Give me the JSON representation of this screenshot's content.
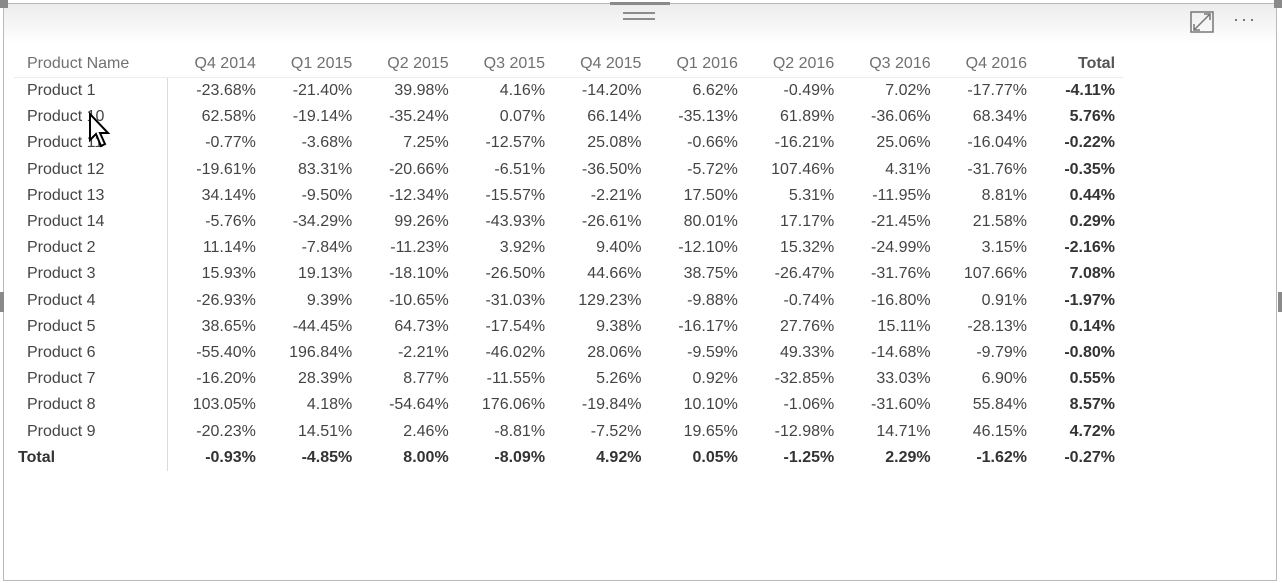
{
  "header": {
    "focus_mode_icon": "focus-mode-icon",
    "more_options_icon": "more-options-icon",
    "more_text": "···"
  },
  "matrix": {
    "columns": [
      "Product Name",
      "Q4 2014",
      "Q1 2015",
      "Q2 2015",
      "Q3 2015",
      "Q4 2015",
      "Q1 2016",
      "Q2 2016",
      "Q3 2016",
      "Q4 2016",
      "Total"
    ],
    "rows": [
      [
        "Product 1",
        "-23.68%",
        "-21.40%",
        "39.98%",
        "4.16%",
        "-14.20%",
        "6.62%",
        "-0.49%",
        "7.02%",
        "-17.77%",
        "-4.11%"
      ],
      [
        "Product 10",
        "62.58%",
        "-19.14%",
        "-35.24%",
        "0.07%",
        "66.14%",
        "-35.13%",
        "61.89%",
        "-36.06%",
        "68.34%",
        "5.76%"
      ],
      [
        "Product 11",
        "-0.77%",
        "-3.68%",
        "7.25%",
        "-12.57%",
        "25.08%",
        "-0.66%",
        "-16.21%",
        "25.06%",
        "-16.04%",
        "-0.22%"
      ],
      [
        "Product 12",
        "-19.61%",
        "83.31%",
        "-20.66%",
        "-6.51%",
        "-36.50%",
        "-5.72%",
        "107.46%",
        "4.31%",
        "-31.76%",
        "-0.35%"
      ],
      [
        "Product 13",
        "34.14%",
        "-9.50%",
        "-12.34%",
        "-15.57%",
        "-2.21%",
        "17.50%",
        "5.31%",
        "-11.95%",
        "8.81%",
        "0.44%"
      ],
      [
        "Product 14",
        "-5.76%",
        "-34.29%",
        "99.26%",
        "-43.93%",
        "-26.61%",
        "80.01%",
        "17.17%",
        "-21.45%",
        "21.58%",
        "0.29%"
      ],
      [
        "Product 2",
        "11.14%",
        "-7.84%",
        "-11.23%",
        "3.92%",
        "9.40%",
        "-12.10%",
        "15.32%",
        "-24.99%",
        "3.15%",
        "-2.16%"
      ],
      [
        "Product 3",
        "15.93%",
        "19.13%",
        "-18.10%",
        "-26.50%",
        "44.66%",
        "38.75%",
        "-26.47%",
        "-31.76%",
        "107.66%",
        "7.08%"
      ],
      [
        "Product 4",
        "-26.93%",
        "9.39%",
        "-10.65%",
        "-31.03%",
        "129.23%",
        "-9.88%",
        "-0.74%",
        "-16.80%",
        "0.91%",
        "-1.97%"
      ],
      [
        "Product 5",
        "38.65%",
        "-44.45%",
        "64.73%",
        "-17.54%",
        "9.38%",
        "-16.17%",
        "27.76%",
        "15.11%",
        "-28.13%",
        "0.14%"
      ],
      [
        "Product 6",
        "-55.40%",
        "196.84%",
        "-2.21%",
        "-46.02%",
        "28.06%",
        "-9.59%",
        "49.33%",
        "-14.68%",
        "-9.79%",
        "-0.80%"
      ],
      [
        "Product 7",
        "-16.20%",
        "28.39%",
        "8.77%",
        "-11.55%",
        "5.26%",
        "0.92%",
        "-32.85%",
        "33.03%",
        "6.90%",
        "0.55%"
      ],
      [
        "Product 8",
        "103.05%",
        "4.18%",
        "-54.64%",
        "176.06%",
        "-19.84%",
        "10.10%",
        "-1.06%",
        "-31.60%",
        "55.84%",
        "8.57%"
      ],
      [
        "Product 9",
        "-20.23%",
        "14.51%",
        "2.46%",
        "-8.81%",
        "-7.52%",
        "19.65%",
        "-12.98%",
        "14.71%",
        "46.15%",
        "4.72%"
      ]
    ],
    "total_row": [
      "Total",
      "-0.93%",
      "-4.85%",
      "8.00%",
      "-8.09%",
      "4.92%",
      "0.05%",
      "-1.25%",
      "2.29%",
      "-1.62%",
      "-0.27%"
    ]
  }
}
